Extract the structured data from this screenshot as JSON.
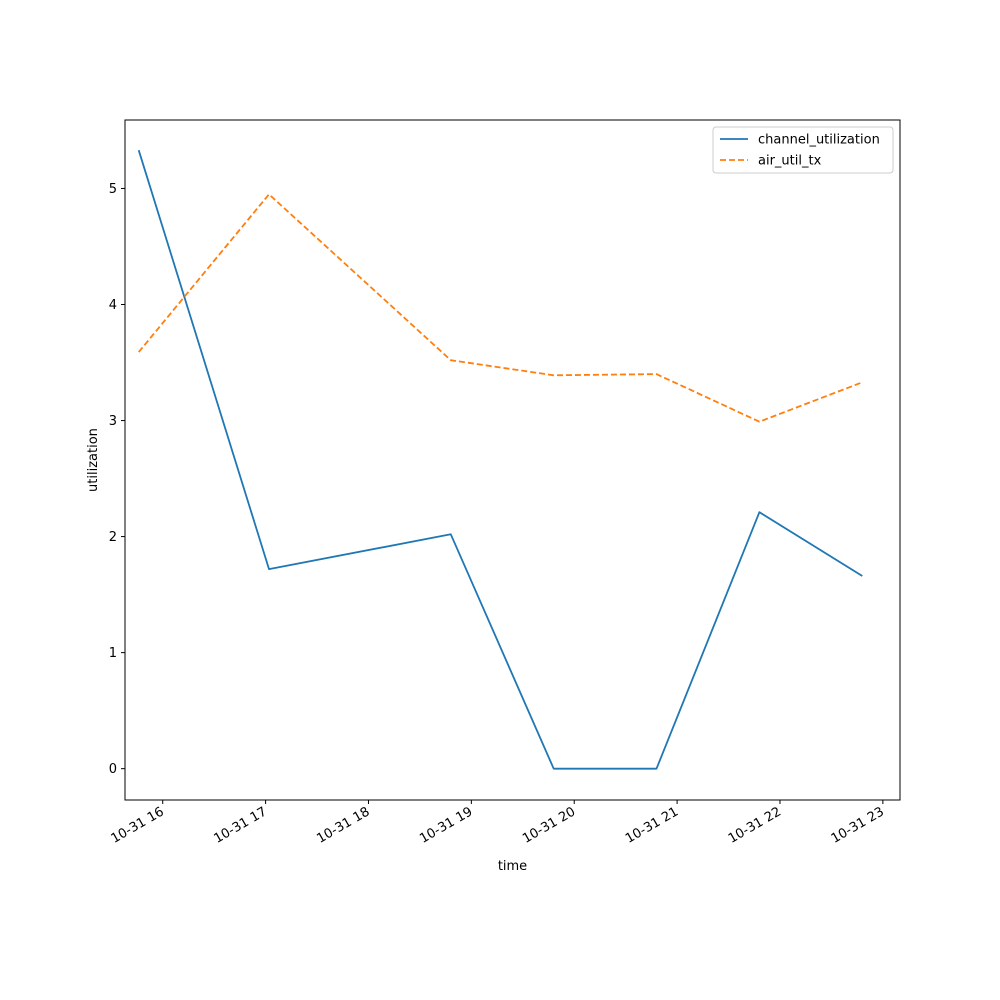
{
  "chart_data": {
    "type": "line",
    "title": "",
    "xlabel": "time",
    "ylabel": "utilization",
    "x_ticks": [
      "10-31 16",
      "10-31 17",
      "10-31 18",
      "10-31 19",
      "10-31 20",
      "10-31 21",
      "10-31 22",
      "10-31 23"
    ],
    "x_range": [
      "2023-10-31 15:38",
      "2023-10-31 23:10"
    ],
    "y_ticks": [
      0,
      1,
      2,
      3,
      4,
      5
    ],
    "ylim": [
      -0.27,
      5.59
    ],
    "grid": false,
    "legend_position": "upper right",
    "series": [
      {
        "name": "channel_utilization",
        "color": "#1f77b4",
        "style": "solid",
        "points": [
          {
            "x": "2023-10-31 15:46",
            "y": 5.33
          },
          {
            "x": "2023-10-31 17:02",
            "y": 1.72
          },
          {
            "x": "2023-10-31 18:48",
            "y": 2.02
          },
          {
            "x": "2023-10-31 19:48",
            "y": 0.0
          },
          {
            "x": "2023-10-31 20:48",
            "y": 0.0
          },
          {
            "x": "2023-10-31 21:48",
            "y": 2.21
          },
          {
            "x": "2023-10-31 22:48",
            "y": 1.66
          }
        ]
      },
      {
        "name": "air_util_tx",
        "color": "#ff7f0e",
        "style": "dashed",
        "points": [
          {
            "x": "2023-10-31 15:46",
            "y": 3.59
          },
          {
            "x": "2023-10-31 17:02",
            "y": 4.95
          },
          {
            "x": "2023-10-31 18:48",
            "y": 3.52
          },
          {
            "x": "2023-10-31 19:48",
            "y": 3.39
          },
          {
            "x": "2023-10-31 20:48",
            "y": 3.4
          },
          {
            "x": "2023-10-31 21:48",
            "y": 2.99
          },
          {
            "x": "2023-10-31 22:48",
            "y": 3.33
          }
        ]
      }
    ]
  }
}
